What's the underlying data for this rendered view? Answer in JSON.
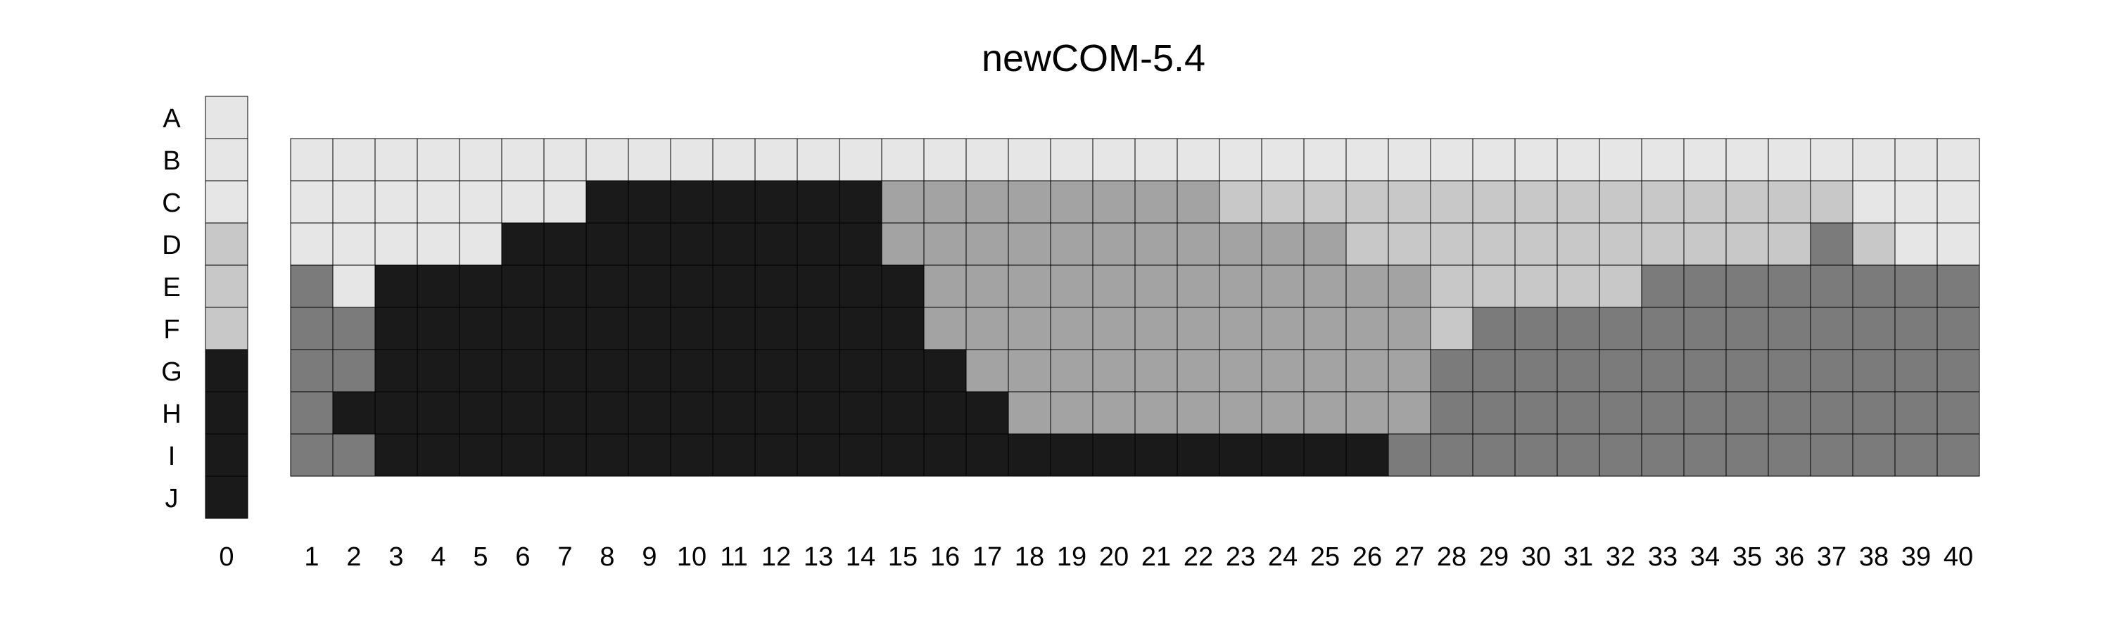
{
  "chart_data": {
    "type": "heatmap",
    "title": "newCOM-5.4",
    "rows": [
      "A",
      "B",
      "C",
      "D",
      "E",
      "F",
      "G",
      "H",
      "I",
      "J"
    ],
    "palette": {
      "1": "#e6e6e6",
      "2": "#c8c8c8",
      "3": "#a3a3a3",
      "4": "#7b7b7b",
      "5": "#1a1a1a"
    },
    "reference_column": {
      "label": "0",
      "values": [
        1,
        1,
        1,
        2,
        2,
        2,
        5,
        5,
        5,
        5
      ]
    },
    "columns": [
      "1",
      "2",
      "3",
      "4",
      "5",
      "6",
      "7",
      "8",
      "9",
      "10",
      "11",
      "12",
      "13",
      "14",
      "15",
      "16",
      "17",
      "18",
      "19",
      "20",
      "21",
      "22",
      "23",
      "24",
      "25",
      "26",
      "27",
      "28",
      "29",
      "30",
      "31",
      "32",
      "33",
      "34",
      "35",
      "36",
      "37",
      "38",
      "39",
      "40"
    ],
    "grid_rows": [
      "B",
      "C",
      "D",
      "E",
      "F",
      "G",
      "H",
      "I"
    ],
    "grid": [
      [
        1,
        1,
        1,
        1,
        1,
        1,
        1,
        1,
        1,
        1,
        1,
        1,
        1,
        1,
        1,
        1,
        1,
        1,
        1,
        1,
        1,
        1,
        1,
        1,
        1,
        1,
        1,
        1,
        1,
        1,
        1,
        1,
        1,
        1,
        1,
        1,
        1,
        1,
        1,
        1
      ],
      [
        1,
        1,
        1,
        1,
        1,
        1,
        1,
        5,
        5,
        5,
        5,
        5,
        5,
        5,
        3,
        3,
        3,
        3,
        3,
        3,
        3,
        3,
        2,
        2,
        2,
        2,
        2,
        2,
        2,
        2,
        2,
        2,
        2,
        2,
        2,
        2,
        2,
        1,
        1,
        1
      ],
      [
        1,
        1,
        1,
        1,
        1,
        5,
        5,
        5,
        5,
        5,
        5,
        5,
        5,
        5,
        3,
        3,
        3,
        3,
        3,
        3,
        3,
        3,
        3,
        3,
        3,
        2,
        2,
        2,
        2,
        2,
        2,
        2,
        2,
        2,
        2,
        2,
        4,
        2,
        1,
        1
      ],
      [
        4,
        1,
        5,
        5,
        5,
        5,
        5,
        5,
        5,
        5,
        5,
        5,
        5,
        5,
        5,
        3,
        3,
        3,
        3,
        3,
        3,
        3,
        3,
        3,
        3,
        3,
        3,
        2,
        2,
        2,
        2,
        2,
        4,
        4,
        4,
        4,
        4,
        4,
        4,
        4
      ],
      [
        4,
        4,
        5,
        5,
        5,
        5,
        5,
        5,
        5,
        5,
        5,
        5,
        5,
        5,
        5,
        3,
        3,
        3,
        3,
        3,
        3,
        3,
        3,
        3,
        3,
        3,
        3,
        2,
        4,
        4,
        4,
        4,
        4,
        4,
        4,
        4,
        4,
        4,
        4,
        4
      ],
      [
        4,
        4,
        5,
        5,
        5,
        5,
        5,
        5,
        5,
        5,
        5,
        5,
        5,
        5,
        5,
        5,
        3,
        3,
        3,
        3,
        3,
        3,
        3,
        3,
        3,
        3,
        3,
        4,
        4,
        4,
        4,
        4,
        4,
        4,
        4,
        4,
        4,
        4,
        4,
        4
      ],
      [
        4,
        5,
        5,
        5,
        5,
        5,
        5,
        5,
        5,
        5,
        5,
        5,
        5,
        5,
        5,
        5,
        5,
        3,
        3,
        3,
        3,
        3,
        3,
        3,
        3,
        3,
        3,
        4,
        4,
        4,
        4,
        4,
        4,
        4,
        4,
        4,
        4,
        4,
        4,
        4
      ],
      [
        4,
        4,
        5,
        5,
        5,
        5,
        5,
        5,
        5,
        5,
        5,
        5,
        5,
        5,
        5,
        5,
        5,
        5,
        5,
        5,
        5,
        5,
        5,
        5,
        5,
        5,
        4,
        4,
        4,
        4,
        4,
        4,
        4,
        4,
        4,
        4,
        4,
        4,
        4,
        4
      ]
    ]
  }
}
